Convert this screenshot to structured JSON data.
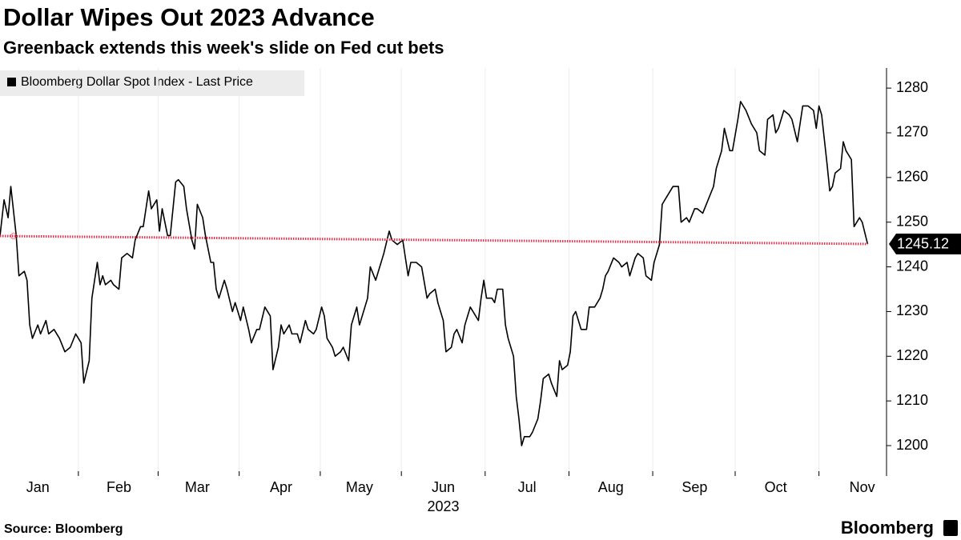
{
  "chart_data": {
    "type": "line",
    "title": "Dollar Wipes Out 2023 Advance",
    "subtitle": "Greenback extends this week's slide on Fed cut bets",
    "x_label": "2023",
    "source": "Source: Bloomberg",
    "logo": "Bloomberg",
    "grid": true,
    "reference_line": {
      "color": "#e8334f"
    },
    "xlim": [
      0,
      328
    ],
    "xticks": [
      {
        "value": 14,
        "label": "Jan"
      },
      {
        "value": 44,
        "label": "Feb"
      },
      {
        "value": 73,
        "label": "Mar"
      },
      {
        "value": 104,
        "label": "Apr"
      },
      {
        "value": 133,
        "label": "May"
      },
      {
        "value": 164,
        "label": "Jun"
      },
      {
        "value": 195,
        "label": "Jul"
      },
      {
        "value": 226,
        "label": "Aug"
      },
      {
        "value": 257,
        "label": "Sep"
      },
      {
        "value": 287,
        "label": "Oct"
      },
      {
        "value": 319,
        "label": "Nov"
      }
    ],
    "ylim": [
      1193.2,
      1284.5
    ],
    "yticks": [
      1200,
      1210,
      1220,
      1230,
      1240,
      1250,
      1260,
      1270,
      1280
    ],
    "series": [
      {
        "name": "Bloomberg Dollar Spot Index - Last Price",
        "color": "#000000",
        "x": [
          0,
          1.5,
          3,
          4,
          6,
          7,
          9,
          10,
          11,
          12,
          14,
          15,
          17,
          18,
          20,
          22,
          24,
          26,
          28,
          30,
          31,
          33,
          34,
          36,
          37,
          38,
          39,
          41,
          42,
          44,
          45,
          47,
          49,
          50,
          52,
          53,
          55,
          56,
          58,
          59,
          60,
          62,
          63,
          65,
          66,
          68,
          69,
          71,
          72,
          73,
          75,
          76,
          78,
          79,
          80,
          81,
          83,
          84,
          86,
          87,
          89,
          90,
          92,
          93,
          95,
          96,
          98,
          100,
          101,
          103,
          104,
          105,
          107,
          108,
          110,
          111,
          113,
          114,
          116,
          117,
          119,
          120,
          121,
          123,
          124,
          126,
          127,
          129,
          130,
          132,
          133,
          135,
          136,
          137,
          139,
          140,
          142,
          144,
          145,
          147,
          149,
          151,
          152,
          154,
          156,
          158,
          159,
          161,
          162,
          164,
          165,
          167,
          168,
          169,
          171,
          172,
          174,
          175,
          177,
          178,
          179,
          180,
          182,
          183,
          184,
          186,
          187,
          188,
          190,
          191,
          192,
          193,
          194,
          196,
          197,
          199,
          200,
          201,
          203,
          204,
          206,
          207,
          208,
          210,
          211,
          212,
          213,
          215,
          217,
          218,
          220,
          222,
          223,
          224,
          225,
          227,
          229,
          230,
          232,
          233,
          235,
          236,
          238,
          239,
          241,
          242,
          244,
          245,
          247,
          249,
          251,
          252,
          254,
          255,
          257,
          258,
          260,
          262,
          264,
          265,
          267,
          268,
          270,
          271,
          273,
          274,
          276,
          278,
          280,
          281,
          283,
          284,
          286,
          287,
          288,
          290,
          292,
          293,
          295,
          296,
          297,
          299,
          301,
          302,
          303,
          304,
          306,
          307,
          308,
          309,
          311,
          312,
          313,
          315,
          316,
          318,
          319,
          321
        ],
        "values": [
          1246.9,
          1255,
          1251,
          1258,
          1247,
          1238,
          1239,
          1237,
          1227,
          1224,
          1227,
          1225,
          1228,
          1225,
          1226,
          1224,
          1221,
          1222,
          1225,
          1223,
          1214,
          1219,
          1233,
          1241,
          1236,
          1238,
          1236,
          1237,
          1236,
          1235,
          1242,
          1243,
          1242,
          1246,
          1249,
          1249,
          1257,
          1253,
          1255,
          1248,
          1253,
          1247,
          1247,
          1259,
          1259.5,
          1258,
          1253,
          1246,
          1244,
          1254,
          1251,
          1247,
          1241,
          1241,
          1235,
          1233,
          1237,
          1235,
          1230,
          1232,
          1228,
          1231,
          1226,
          1223,
          1226,
          1226,
          1231,
          1229,
          1217,
          1222,
          1227,
          1225,
          1227,
          1225,
          1225,
          1223,
          1228,
          1226,
          1225,
          1226,
          1231,
          1229,
          1224,
          1222,
          1220,
          1221,
          1222,
          1219,
          1227,
          1231,
          1227,
          1231,
          1233,
          1240,
          1237,
          1239,
          1243,
          1248,
          1246,
          1245,
          1246,
          1238,
          1241,
          1241,
          1240,
          1233,
          1234,
          1235,
          1232,
          1228,
          1221,
          1222,
          1225,
          1226,
          1223,
          1227,
          1231,
          1230,
          1228,
          1233,
          1237,
          1233,
          1233,
          1232,
          1235,
          1235,
          1227,
          1224,
          1220,
          1211,
          1206,
          1200,
          1202,
          1202,
          1203,
          1206,
          1210,
          1215,
          1216,
          1214,
          1211,
          1219,
          1217,
          1218,
          1221,
          1229,
          1230,
          1226,
          1226,
          1231,
          1231,
          1233,
          1235,
          1238,
          1239,
          1242,
          1241,
          1240,
          1241,
          1238,
          1242,
          1243,
          1242,
          1238,
          1237,
          1241,
          1245,
          1254,
          1256,
          1258,
          1258,
          1250,
          1251,
          1250,
          1253,
          1253,
          1252,
          1255,
          1258,
          1262,
          1266,
          1271,
          1266,
          1266,
          1273,
          1277,
          1275,
          1272,
          1270,
          1266,
          1265,
          1273,
          1274,
          1270,
          1271,
          1275,
          1274,
          1273,
          1268,
          1272,
          1276,
          1276,
          1275,
          1271,
          1276,
          1274,
          1263,
          1257,
          1258,
          1261,
          1262,
          1268,
          1266,
          1264,
          1249,
          1251,
          1250,
          1245.12
        ]
      }
    ]
  }
}
